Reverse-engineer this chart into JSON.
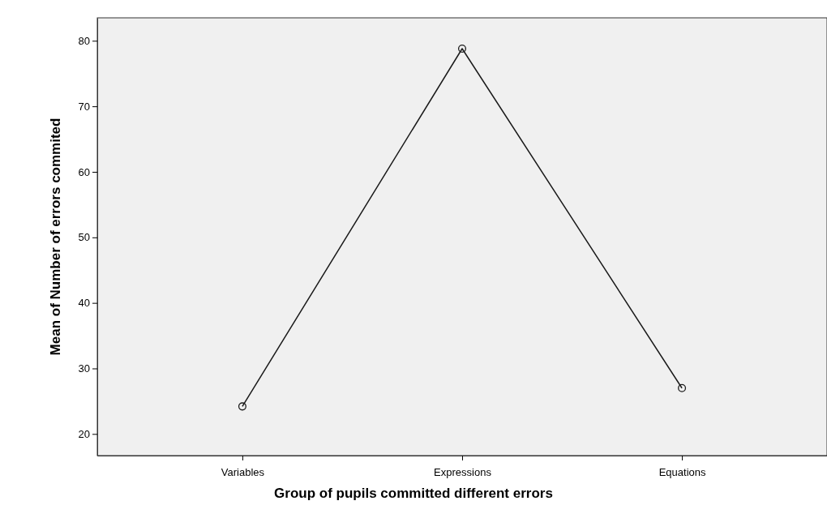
{
  "chart_data": {
    "type": "line",
    "xlabel": "Group of pupils committed different errors",
    "ylabel": "Mean of Number of errors commited",
    "categories": [
      "Variables",
      "Expressions",
      "Equations"
    ],
    "series": [
      {
        "color": "#1a1a1a",
        "values": [
          24.2,
          78.8,
          27.0
        ]
      }
    ],
    "ylim": [
      16.7,
      83.5
    ],
    "yticks": [
      20,
      30,
      40,
      50,
      60,
      70,
      80
    ],
    "marker": "circle",
    "line_style": "solid",
    "grid": false
  }
}
